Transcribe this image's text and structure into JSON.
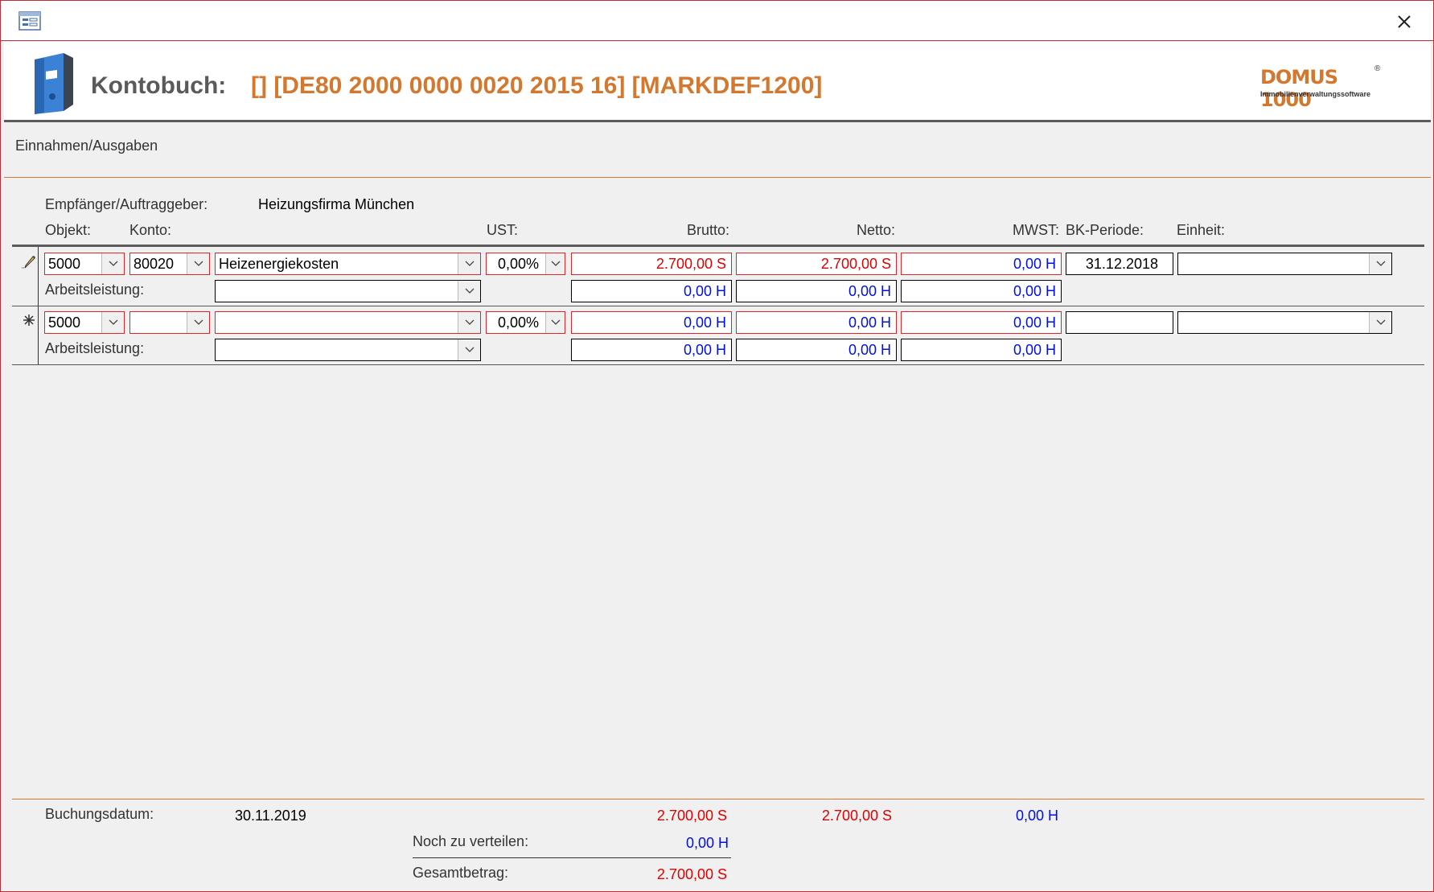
{
  "titlebar": {
    "icon": "form-icon",
    "close_icon": "close-icon"
  },
  "header": {
    "label": "Kontobuch:",
    "value": "[] [DE80 2000 0000 0020 2015 16] [MARKDEF1200]",
    "logo": {
      "brand": "DOMUS 1000",
      "registered": "®",
      "tagline": "Immobilienverwaltungssoftware"
    },
    "accent_color": "#d3782e"
  },
  "section": {
    "label": "Einnahmen/Ausgaben"
  },
  "recipient": {
    "label": "Empfänger/Auftraggeber:",
    "value": "Heizungsfirma München"
  },
  "columns": {
    "objekt": "Objekt:",
    "konto": "Konto:",
    "ust": "UST:",
    "brutto": "Brutto:",
    "netto": "Netto:",
    "mwst": "MWST:",
    "bk_periode": "BK-Periode:",
    "einheit": "Einheit:"
  },
  "rows": [
    {
      "selector": "pencil-icon",
      "objekt": "5000",
      "konto": "80020",
      "bezeichnung": "Heizenergiekosten",
      "ust": "0,00%",
      "brutto": "2.700,00 S",
      "netto": "2.700,00 S",
      "mwst": "0,00 H",
      "bk_periode": "31.12.2018",
      "einheit": "",
      "arbeitsleistung_label": "Arbeitsleistung:",
      "arbeitsleistung": "",
      "al_brutto": "0,00 H",
      "al_netto": "0,00 H",
      "al_mwst": "0,00 H"
    },
    {
      "selector": "new-record-icon",
      "objekt": "5000",
      "konto": "",
      "bezeichnung": "",
      "ust": "0,00%",
      "brutto": "0,00 H",
      "netto": "0,00 H",
      "mwst": "0,00 H",
      "bk_periode": "",
      "einheit": "",
      "arbeitsleistung_label": "Arbeitsleistung:",
      "arbeitsleistung": "",
      "al_brutto": "0,00 H",
      "al_netto": "0,00 H",
      "al_mwst": "0,00 H"
    }
  ],
  "footer": {
    "buchungsdatum_label": "Buchungsdatum:",
    "buchungsdatum": "30.11.2019",
    "sum_brutto": "2.700,00 S",
    "sum_netto": "2.700,00 S",
    "sum_mwst": "0,00 H",
    "noch_label": "Noch zu verteilen:",
    "noch_value": "0,00 H",
    "gesamt_label": "Gesamtbetrag:",
    "gesamt_value": "2.700,00 S"
  },
  "colors": {
    "soll": "#e00000",
    "haben": "#0010e0",
    "required_border": "#d9262b"
  }
}
